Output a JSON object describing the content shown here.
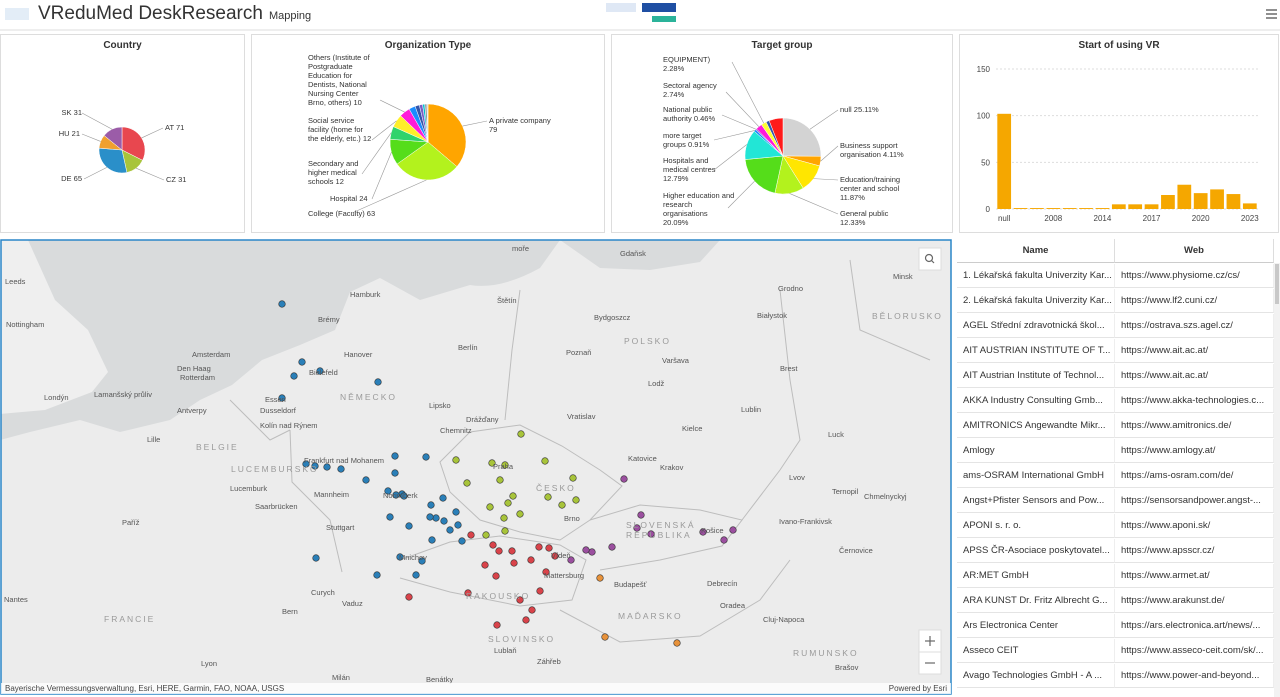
{
  "header": {
    "title": "VReduMed DeskResearch",
    "subtitle": "Mapping"
  },
  "chart_data": [
    {
      "type": "pie",
      "title": "Country",
      "categories": [
        "AT",
        "CZ",
        "DE",
        "HU",
        "SK"
      ],
      "values": [
        71,
        31,
        65,
        21,
        31
      ],
      "colors": [
        "#e8474f",
        "#a8c43a",
        "#2a8fc9",
        "#f0a030",
        "#9b5ca8"
      ]
    },
    {
      "type": "pie",
      "title": "Organization Type",
      "categories": [
        "A private company",
        "College (Faculty)",
        "Hospital",
        "Secondary and higher medical schools",
        "Social service facility (home for the elderly, etc.)",
        "Others (Institute of Postgraduate Education for Dentists, National Nursing Center Brno, others)",
        null,
        null,
        null,
        null,
        null,
        null
      ],
      "values": [
        79,
        63,
        24,
        12,
        12,
        10,
        6,
        4,
        3,
        2,
        2,
        1
      ],
      "colors": [
        "#ffa500",
        "#b3f21d",
        "#55dd1a",
        "#2fd36b",
        "#ffef2a",
        "#ff1ad9",
        "#1a8cff",
        "#3355aa",
        "#7b5cc4",
        "#00c0d0",
        "#999999",
        "#cccccc"
      ]
    },
    {
      "type": "pie",
      "title": "Target group",
      "categories": [
        "null",
        "Business support organisation",
        "Education/training center and school",
        "General public",
        "Higher education and research organisations",
        "Hospitals and medical centres",
        "more target groups",
        "National public authority",
        "Sectoral agency",
        "EQUIPMENT)",
        null,
        null
      ],
      "values": [
        25.11,
        4.11,
        11.87,
        12.33,
        20.09,
        12.79,
        0.91,
        0.46,
        2.74,
        2.28,
        1.37,
        5.94
      ],
      "value_labels": [
        "25.11%",
        "4.11%",
        "11.87%",
        "12.33%",
        "20.09%",
        "12.79%",
        "0.91%",
        "0.46%",
        "2.74%",
        "2.28%",
        null,
        null
      ],
      "colors": [
        "#d3d3d3",
        "#ffa500",
        "#ffe600",
        "#b3f21d",
        "#55dd1a",
        "#22e6d6",
        "#1a8cff",
        "#7b5cc4",
        "#ff1ad9",
        "#ffff33",
        "#3355aa",
        "#ff1a1a"
      ]
    },
    {
      "type": "bar",
      "title": "Start of using VR",
      "categories": [
        "null",
        null,
        null,
        "2008",
        null,
        null,
        "2014",
        null,
        null,
        "2017",
        null,
        null,
        "2020",
        null,
        null,
        "2023"
      ],
      "values": [
        102,
        1,
        1,
        1,
        1,
        1,
        1,
        5,
        5,
        5,
        15,
        26,
        17,
        21,
        16,
        6
      ],
      "color": "#f5a700",
      "ylim": [
        0,
        150
      ],
      "yticks": [
        0,
        50,
        100,
        150
      ],
      "grid": true
    }
  ],
  "map": {
    "labels": [
      "moře",
      "Gdaňsk",
      "Minsk",
      "Leeds",
      "Hamburk",
      "Štětín",
      "Grodno",
      "Brémy",
      "Bydgoszcz",
      "Białystok",
      "Nottingham",
      "BĚLORUSKO",
      "Amsterdam",
      "Hanover",
      "Berlín",
      "Poznaň",
      "POLSKO",
      "Varšava",
      "Den Haag",
      "Rotterdam",
      "Bielefeld",
      "Brest",
      "Lodž",
      "Londýn",
      "Essen",
      "NĚMECKO",
      "Dusseldorf",
      "Lipsko",
      "Vratislav",
      "Lublin",
      "Antverpy",
      "Drážďany",
      "Kolín nad Rýnem",
      "Chemnitz",
      "Kielce",
      "Lille",
      "BELGIE",
      "Luck",
      "Frankfurt nad Mohanem",
      "Praha",
      "Katovice",
      "Krakov",
      "LUCEMBURSKO",
      "Lucemburk",
      "Mannheim",
      "Norimberk",
      "ČESKO",
      "Lvov",
      "Ternopil",
      "Saarbrücken",
      "Chmelnyckyj",
      "Paříž",
      "Stuttgart",
      "Brno",
      "SLOVENSKÁ",
      "REPUBLIKA",
      "Košice",
      "Ivano-Frankivsk",
      "Mnichov",
      "Vídeň",
      "Černovice",
      "Mattersburg",
      "Budapešť",
      "Debrecín",
      "Curych",
      "Vaduz",
      "RAKOUSKO",
      "Oradea",
      "Bern",
      "FRANCIE",
      "MAĎARSKO",
      "Cluj-Napoca",
      "Nantes",
      "SLOVINSKO",
      "Lublaň",
      "Záhřeb",
      "RUMUNSKO",
      "Lyon",
      "Brašov",
      "Milán",
      "Benátky",
      "Lamanšský průliv"
    ],
    "attribution": "Bayerische Vermessungsverwaltung, Esri, HERE, Garmin, FAO, NOAA, USGS",
    "powered_by": "Powered by Esri"
  },
  "table": {
    "header": [
      "Name",
      "Web"
    ],
    "rows": [
      [
        "1. Lékařská fakulta Univerzity Kar...",
        "https://www.physiome.cz/cs/"
      ],
      [
        "2. Lékařská fakulta Univerzity Kar...",
        "https://www.lf2.cuni.cz/"
      ],
      [
        "AGEL Střední zdravotnická škol...",
        "https://ostrava.szs.agel.cz/"
      ],
      [
        "AIT AUSTRIAN INSTITUTE OF T...",
        "https://www.ait.ac.at/"
      ],
      [
        "AIT Austrian Institute of Technol...",
        "https://www.ait.ac.at/"
      ],
      [
        "AKKA Industry Consulting Gmb...",
        "https://www.akka-technologies.c..."
      ],
      [
        "AMITRONICS Angewandte Mikr...",
        "https://www.amitronics.de/"
      ],
      [
        "Amlogy",
        "https://www.amlogy.at/"
      ],
      [
        "ams-OSRAM International GmbH",
        "https://ams-osram.com/de/"
      ],
      [
        "Angst+Pfister Sensors and Pow...",
        "https://sensorsandpower.angst-..."
      ],
      [
        "APONI s. r. o.",
        "https://www.aponi.sk/"
      ],
      [
        "APSS ČR-Asociace poskytovatel...",
        "https://www.apsscr.cz/"
      ],
      [
        "AR:MET GmbH",
        "https://www.armet.at/"
      ],
      [
        "ARA KUNST Dr. Fritz Albrecht G...",
        "https://www.arakunst.de/"
      ],
      [
        "Ars Electronica Center",
        "https://ars.electronica.art/news/..."
      ],
      [
        "Asseco CEIT",
        "https://www.asseco-ceit.com/sk/..."
      ],
      [
        "Avago Technologies GmbH - A ...",
        "https://www.power-and-beyond..."
      ]
    ]
  }
}
